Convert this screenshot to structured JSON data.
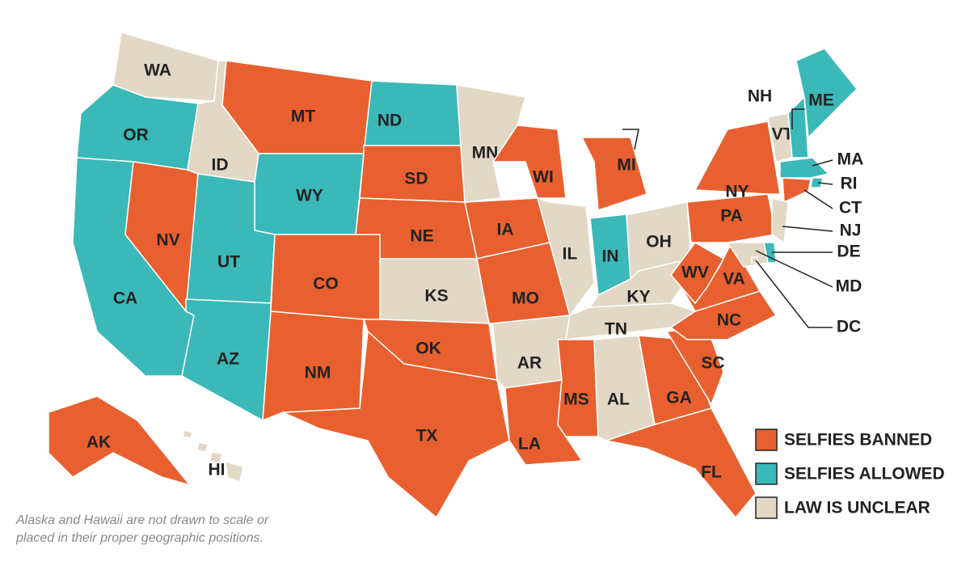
{
  "legend": [
    {
      "label": "SELFIES BANNED",
      "color": "#e8602f"
    },
    {
      "label": "SELFIES ALLOWED",
      "color": "#3bb8b8"
    },
    {
      "label": "LAW IS UNCLEAR",
      "color": "#e2d8c5"
    }
  ],
  "states": [
    {
      "label": "WA",
      "group": 2
    },
    {
      "label": "OR",
      "group": 1
    },
    {
      "label": "CA",
      "group": 1
    },
    {
      "label": "NV",
      "group": 0
    },
    {
      "label": "ID",
      "group": 2
    },
    {
      "label": "MT",
      "group": 0
    },
    {
      "label": "WY",
      "group": 1
    },
    {
      "label": "UT",
      "group": 1
    },
    {
      "label": "AZ",
      "group": 1
    },
    {
      "label": "CO",
      "group": 0
    },
    {
      "label": "NM",
      "group": 0
    },
    {
      "label": "ND",
      "group": 1
    },
    {
      "label": "SD",
      "group": 0
    },
    {
      "label": "NE",
      "group": 0
    },
    {
      "label": "KS",
      "group": 2
    },
    {
      "label": "OK",
      "group": 0
    },
    {
      "label": "TX",
      "group": 0
    },
    {
      "label": "MN",
      "group": 2
    },
    {
      "label": "IA",
      "group": 0
    },
    {
      "label": "MO",
      "group": 0
    },
    {
      "label": "AR",
      "group": 2
    },
    {
      "label": "LA",
      "group": 0
    },
    {
      "label": "WI",
      "group": 0
    },
    {
      "label": "IL",
      "group": 2
    },
    {
      "label": "MI",
      "group": 0
    },
    {
      "label": "IN",
      "group": 1
    },
    {
      "label": "OH",
      "group": 2
    },
    {
      "label": "KY",
      "group": 2
    },
    {
      "label": "TN",
      "group": 2
    },
    {
      "label": "MS",
      "group": 0
    },
    {
      "label": "AL",
      "group": 2
    },
    {
      "label": "GA",
      "group": 0
    },
    {
      "label": "FL",
      "group": 0
    },
    {
      "label": "SC",
      "group": 0
    },
    {
      "label": "NC",
      "group": 0
    },
    {
      "label": "VA",
      "group": 0
    },
    {
      "label": "WV",
      "group": 0
    },
    {
      "label": "PA",
      "group": 0
    },
    {
      "label": "NY",
      "group": 0
    },
    {
      "label": "VT",
      "group": 2
    },
    {
      "label": "NH",
      "group": 1
    },
    {
      "label": "ME",
      "group": 1
    },
    {
      "label": "MA",
      "group": 1
    },
    {
      "label": "RI",
      "group": 1
    },
    {
      "label": "CT",
      "group": 0
    },
    {
      "label": "NJ",
      "group": 2
    },
    {
      "label": "DE",
      "group": 1
    },
    {
      "label": "MD",
      "group": 2
    },
    {
      "label": "DC",
      "group": 2
    },
    {
      "label": "AK",
      "group": 0
    },
    {
      "label": "HI",
      "group": 2
    }
  ],
  "note": [
    "Alaska and Hawaii are not drawn to scale or",
    "placed in their proper geographic positions."
  ]
}
